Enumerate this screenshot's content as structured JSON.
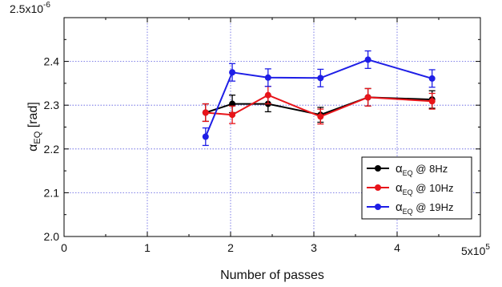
{
  "chart_data": {
    "type": "line",
    "title": "",
    "xlabel": "Number of passes",
    "ylabel": "αEQ [rad]",
    "xlim": [
      0,
      5
    ],
    "ylim": [
      2.0,
      2.5
    ],
    "x_multiplier": "5x10",
    "x_multiplier_exp": "5",
    "y_multiplier": "2.5x10",
    "y_multiplier_exp": "-6",
    "xticks": [
      0,
      1,
      2,
      3,
      4
    ],
    "yticks": [
      2.0,
      2.1,
      2.2,
      2.3,
      2.4
    ],
    "xtick_labels": [
      "0",
      "1",
      "2",
      "3",
      "4"
    ],
    "ytick_labels": [
      "2.0",
      "2.1",
      "2.2",
      "2.3",
      "2.4"
    ],
    "grid": true,
    "legend_position": "bottom-right",
    "series": [
      {
        "name_main": "α",
        "name_sub": "EQ",
        "name_rest": " @ 8Hz",
        "color": "#000000",
        "x": [
          1.7,
          2.02,
          2.45,
          3.08,
          3.65,
          4.42
        ],
        "y": [
          2.283,
          2.303,
          2.303,
          2.278,
          2.318,
          2.313
        ],
        "err": [
          0.02,
          0.02,
          0.018,
          0.017,
          0.02,
          0.02
        ]
      },
      {
        "name_main": "α",
        "name_sub": "EQ",
        "name_rest": " @ 10Hz",
        "color": "#e8141a",
        "x": [
          1.7,
          2.02,
          2.45,
          3.08,
          3.65,
          4.42
        ],
        "y": [
          2.283,
          2.278,
          2.323,
          2.274,
          2.318,
          2.309
        ],
        "err": [
          0.02,
          0.02,
          0.02,
          0.017,
          0.02,
          0.018
        ]
      },
      {
        "name_main": "α",
        "name_sub": "EQ",
        "name_rest": " @ 19Hz",
        "color": "#1e1ee6",
        "x": [
          1.7,
          2.02,
          2.45,
          3.08,
          3.65,
          4.42
        ],
        "y": [
          2.228,
          2.375,
          2.363,
          2.362,
          2.404,
          2.361
        ],
        "err": [
          0.02,
          0.02,
          0.02,
          0.02,
          0.02,
          0.02
        ]
      }
    ]
  }
}
